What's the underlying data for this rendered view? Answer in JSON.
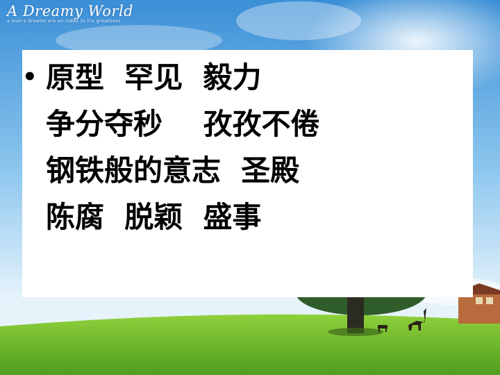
{
  "brand": {
    "title": "A Dreamy World",
    "subtitle": "a man's dreams are an index to his greatness"
  },
  "slide": {
    "bullet": "•",
    "lines": [
      "原型  罕见  毅力",
      "争分夺秒    孜孜不倦",
      "钢铁般的意志  圣殿",
      "陈腐  脱颖  盛事"
    ]
  },
  "colors": {
    "sky_top": "#3b8fd6",
    "sky_bottom": "#e6f3fb",
    "grass": "#6fbf2a",
    "panel": "#ffffff",
    "text": "#000000"
  }
}
